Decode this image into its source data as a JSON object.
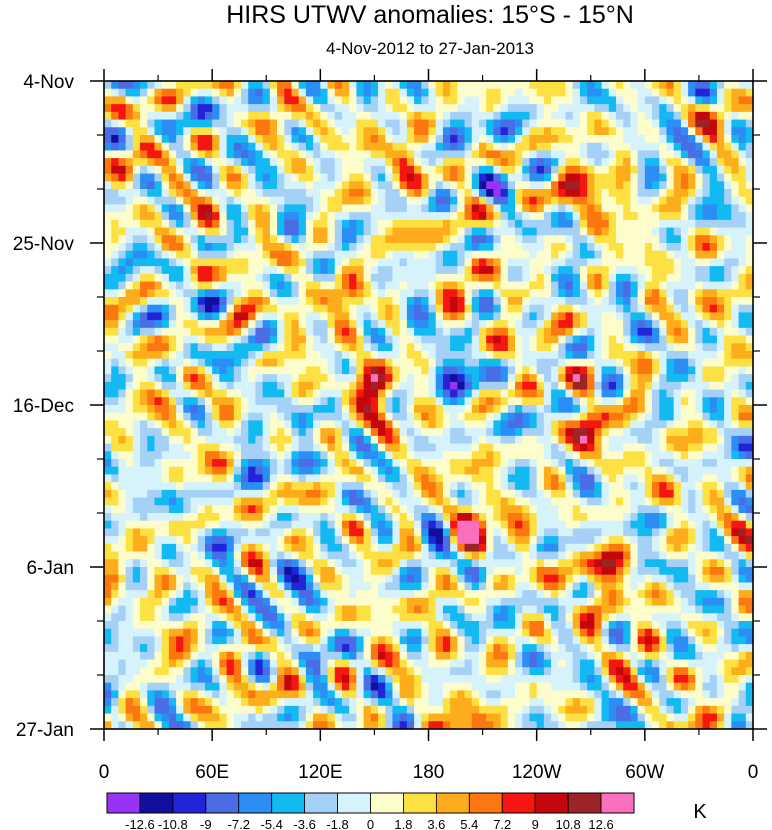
{
  "chart_data": {
    "type": "heatmap",
    "title": "HIRS UTWV anomalies: 15°S - 15°N",
    "subtitle": "4-Nov-2012 to 27-Jan-2013",
    "xlabel": "",
    "ylabel": "",
    "x_range_lon_east": [
      0,
      360
    ],
    "x_ticks": [
      {
        "lon": 0,
        "label": "0"
      },
      {
        "lon": 60,
        "label": "60E"
      },
      {
        "lon": 120,
        "label": "120E"
      },
      {
        "lon": 180,
        "label": "180"
      },
      {
        "lon": 240,
        "label": "120W"
      },
      {
        "lon": 300,
        "label": "60W"
      },
      {
        "lon": 360,
        "label": "0"
      }
    ],
    "y_range_days": [
      0,
      84
    ],
    "y_ticks": [
      {
        "day": 0,
        "label": "4-Nov"
      },
      {
        "day": 21,
        "label": "25-Nov"
      },
      {
        "day": 42,
        "label": "16-Dec"
      },
      {
        "day": 63,
        "label": "6-Jan"
      },
      {
        "day": 84,
        "label": "27-Jan"
      }
    ],
    "colorbar": {
      "unit": "K",
      "levels": [
        -12.6,
        -10.8,
        -9,
        -7.2,
        -5.4,
        -3.6,
        -1.8,
        0,
        1.8,
        3.6,
        5.4,
        7.2,
        9,
        10.8,
        12.6
      ],
      "level_labels": [
        "-12.6",
        "-10.8",
        "-9",
        "-7.2",
        "-5.4",
        "-3.6",
        "-1.8",
        "0",
        "1.8",
        "3.6",
        "5.4",
        "7.2",
        "9",
        "10.8",
        "12.6"
      ],
      "colors": [
        "#9733f5",
        "#100f9e",
        "#2323d8",
        "#4a6de6",
        "#2b8ef4",
        "#13baf2",
        "#a6d1f7",
        "#d6f3fc",
        "#fdfdcb",
        "#fde143",
        "#fdad1b",
        "#fc7710",
        "#f51511",
        "#c4070c",
        "#9c2326",
        "#fa6fbe"
      ]
    },
    "features": [
      {
        "lon": 206,
        "day": 57.5,
        "value": 9.5,
        "note": "strong positive anomaly near 150W"
      },
      {
        "lon": 195,
        "day": 85,
        "value": 9,
        "note": "positive anomaly near 165W at end of period"
      },
      {
        "lon": 282,
        "day": 64,
        "value": 10.8,
        "note": "strong positive band near 80W, early January"
      },
      {
        "lon": 268,
        "day": 46,
        "value": 8.5,
        "note": "positive anomaly near 95W, mid December"
      },
      {
        "lon": 150,
        "day": 40,
        "value": 9.5,
        "note": "positive anomaly near 150E, mid December"
      },
      {
        "lon": 137,
        "day": 27,
        "value": 7.5,
        "note": "positive anomaly near 137E"
      },
      {
        "lon": 168,
        "day": 9,
        "value": 7.2,
        "note": "positive anomaly near 170E, early November"
      },
      {
        "lon": 269,
        "day": 15,
        "value": 8.5,
        "note": "positive anomaly near 90W, mid November"
      },
      {
        "lon": 88,
        "day": 49,
        "value": -7.2,
        "note": "negative anomaly near 90E"
      },
      {
        "lon": 113,
        "day": 65,
        "value": -7.2,
        "note": "negative anomaly near 113E, early January"
      },
      {
        "lon": 220,
        "day": 6,
        "value": -7.0,
        "note": "negative anomaly near 140W"
      },
      {
        "lon": 193,
        "day": 38,
        "value": -7.5,
        "note": "negative anomaly near 165W"
      }
    ]
  }
}
